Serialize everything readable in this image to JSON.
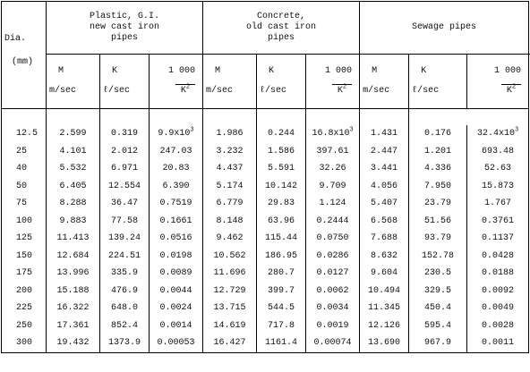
{
  "header": {
    "dia": "Dia.",
    "unit": "(mm)"
  },
  "groups": [
    {
      "lines": [
        "Plastic, G.I.",
        "new cast iron",
        "pipes"
      ],
      "columns": [
        {
          "symbol": "M",
          "unit": "m/sec"
        },
        {
          "symbol": "K",
          "unit": "ℓ/sec"
        },
        {
          "numerator": "1 000",
          "denominator": "K",
          "exp": "2"
        }
      ]
    },
    {
      "lines": [
        "Concrete,",
        "old cast iron",
        "pipes"
      ],
      "columns": [
        {
          "symbol": "M",
          "unit": "m/sec"
        },
        {
          "symbol": "K",
          "unit": "ℓ/sec"
        },
        {
          "numerator": "1 000",
          "denominator": "K",
          "exp": "2"
        }
      ]
    },
    {
      "lines": [
        "Sewage pipes"
      ],
      "columns": [
        {
          "symbol": "M",
          "unit": "m/sec"
        },
        {
          "symbol": "K",
          "unit": "ℓ/sec"
        },
        {
          "numerator": "1 000",
          "denominator": "K",
          "exp": "2"
        }
      ]
    }
  ],
  "rows": [
    {
      "dia": "12.5",
      "cells": [
        "2.599",
        "0.319",
        {
          "base": "9.9x10",
          "exp": "3"
        },
        "1.986",
        "0.244",
        {
          "base": "16.8x10",
          "exp": "3"
        },
        "1.431",
        "0.176",
        {
          "base": "32.4x10",
          "exp": "3"
        }
      ]
    },
    {
      "dia": "25",
      "cells": [
        "4.101",
        "2.012",
        "247.03",
        "3.232",
        "1.586",
        "397.61",
        "2.447",
        "1.201",
        "693.48"
      ]
    },
    {
      "dia": "40",
      "cells": [
        "5.532",
        "6.971",
        "20.83",
        "4.437",
        "5.591",
        "32.26",
        "3.441",
        "4.336",
        "52.63"
      ]
    },
    {
      "dia": "50",
      "cells": [
        "6.405",
        "12.554",
        "6.390",
        "5.174",
        "10.142",
        "9.709",
        "4.056",
        "7.950",
        "15.873"
      ]
    },
    {
      "dia": "75",
      "cells": [
        "8.288",
        "36.47",
        "0.7519",
        "6.779",
        "29.83",
        "1.124",
        "5.407",
        "23.79",
        "1.767"
      ]
    },
    {
      "dia": "100",
      "cells": [
        "9.883",
        "77.58",
        "0.1661",
        "8.148",
        "63.96",
        "0.2444",
        "6.568",
        "51.56",
        "0.3761"
      ]
    },
    {
      "dia": "125",
      "cells": [
        "11.413",
        "139.24",
        "0.0516",
        "9.462",
        "115.44",
        "0.0750",
        "7.688",
        "93.79",
        "0.1137"
      ]
    },
    {
      "dia": "150",
      "cells": [
        "12.684",
        "224.51",
        "0.0198",
        "10.562",
        "186.95",
        "0.0286",
        "8.632",
        "152.78",
        "0.0428"
      ]
    },
    {
      "dia": "175",
      "cells": [
        "13.996",
        "335.9",
        "0.0089",
        "11.696",
        "280.7",
        "0.0127",
        "9.604",
        "230.5",
        "0.0188"
      ]
    },
    {
      "dia": "200",
      "cells": [
        "15.188",
        "476.9",
        "0.0044",
        "12.729",
        "399.7",
        "0.0062",
        "10.494",
        "329.5",
        "0.0092"
      ]
    },
    {
      "dia": "225",
      "cells": [
        "16.322",
        "648.0",
        "0.0024",
        "13.715",
        "544.5",
        "0.0034",
        "11.345",
        "450.4",
        "0.0049"
      ]
    },
    {
      "dia": "250",
      "cells": [
        "17.361",
        "852.4",
        "0.0014",
        "14.619",
        "717.8",
        "0.0019",
        "12.126",
        "595.4",
        "0.0028"
      ]
    },
    {
      "dia": "300",
      "cells": [
        "19.432",
        "1373.9",
        "0.00053",
        "16.427",
        "1161.4",
        "0.00074",
        "13.690",
        "967.9",
        "0.0011"
      ]
    }
  ]
}
